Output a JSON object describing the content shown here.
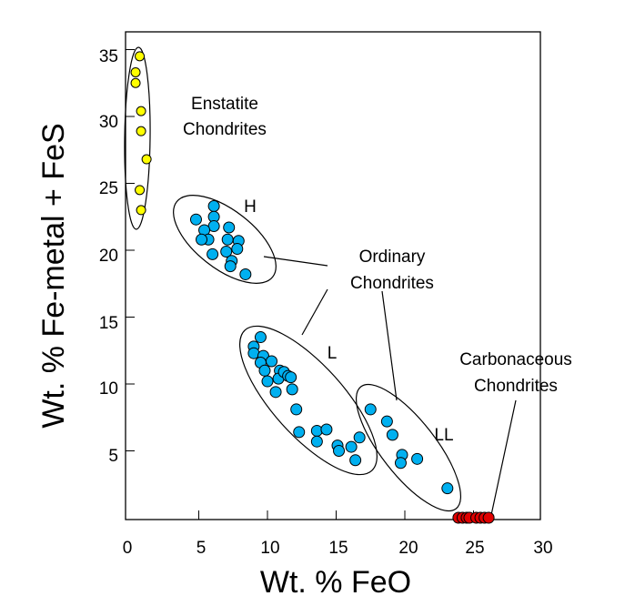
{
  "chart_data": {
    "type": "scatter",
    "xlabel": "Wt. % FeO",
    "ylabel": "Wt. % Fe-metal + FeS",
    "xlim": [
      0,
      30
    ],
    "ylim": [
      0,
      36
    ],
    "x_ticks": [
      0,
      5,
      10,
      15,
      20,
      25,
      30
    ],
    "y_ticks": [
      5,
      10,
      15,
      20,
      25,
      30,
      35
    ],
    "grid": false,
    "colors": {
      "enstatite": "#ffff00",
      "ordinary": "#00b0f0",
      "carbonaceous": "#e00000",
      "marker_edge": "#000000"
    },
    "groups": [
      {
        "key": "enstatite",
        "label_lines": [
          "Enstatite",
          "Chondrites"
        ],
        "points": [
          [
            0.7,
            34.5
          ],
          [
            0.4,
            33.3
          ],
          [
            0.4,
            32.5
          ],
          [
            0.8,
            30.4
          ],
          [
            0.8,
            28.9
          ],
          [
            1.2,
            26.8
          ],
          [
            0.7,
            24.5
          ],
          [
            0.8,
            23.0
          ]
        ]
      },
      {
        "key": "H",
        "label_lines": [
          "H"
        ],
        "points": [
          [
            4.8,
            22.3
          ],
          [
            6.1,
            23.3
          ],
          [
            6.1,
            22.5
          ],
          [
            6.1,
            21.8
          ],
          [
            5.4,
            21.5
          ],
          [
            5.7,
            20.8
          ],
          [
            5.2,
            20.8
          ],
          [
            6.0,
            19.7
          ],
          [
            7.2,
            21.7
          ],
          [
            7.1,
            20.8
          ],
          [
            7.9,
            20.7
          ],
          [
            7.0,
            19.9
          ],
          [
            7.8,
            20.1
          ],
          [
            7.4,
            19.2
          ],
          [
            7.3,
            18.8
          ],
          [
            8.4,
            18.2
          ]
        ]
      },
      {
        "key": "L",
        "label_lines": [
          "L"
        ],
        "points": [
          [
            9.5,
            13.5
          ],
          [
            9.0,
            12.8
          ],
          [
            9.0,
            12.3
          ],
          [
            9.7,
            12.1
          ],
          [
            9.5,
            11.6
          ],
          [
            10.3,
            11.7
          ],
          [
            9.8,
            11.0
          ],
          [
            10.9,
            11.0
          ],
          [
            10.8,
            10.4
          ],
          [
            11.2,
            10.9
          ],
          [
            11.5,
            10.6
          ],
          [
            10.0,
            10.2
          ],
          [
            11.7,
            10.5
          ],
          [
            10.6,
            9.4
          ],
          [
            11.8,
            9.6
          ],
          [
            12.1,
            8.1
          ],
          [
            12.3,
            6.4
          ],
          [
            13.6,
            6.5
          ],
          [
            14.3,
            6.6
          ],
          [
            13.6,
            5.7
          ],
          [
            15.1,
            5.4
          ],
          [
            15.2,
            5.0
          ],
          [
            16.1,
            5.3
          ],
          [
            16.7,
            6.0
          ],
          [
            16.4,
            4.3
          ]
        ]
      },
      {
        "key": "LL",
        "label_lines": [
          "LL"
        ],
        "points": [
          [
            17.5,
            8.1
          ],
          [
            18.7,
            7.2
          ],
          [
            19.1,
            6.2
          ],
          [
            19.8,
            4.7
          ],
          [
            19.7,
            4.1
          ],
          [
            20.9,
            4.4
          ],
          [
            23.1,
            2.2
          ]
        ]
      },
      {
        "key": "carbonaceous",
        "label_lines": [
          "Carbonaceous",
          "Chondrites"
        ],
        "points": [
          [
            23.9,
            0.0
          ],
          [
            24.2,
            0.0
          ],
          [
            24.5,
            0.0
          ],
          [
            24.7,
            0.0
          ],
          [
            25.2,
            0.0
          ],
          [
            25.5,
            0.0
          ],
          [
            25.8,
            0.0
          ],
          [
            26.1,
            0.0
          ]
        ]
      }
    ],
    "shared_label_lines": [
      "Ordinary",
      "Chondrites"
    ]
  }
}
